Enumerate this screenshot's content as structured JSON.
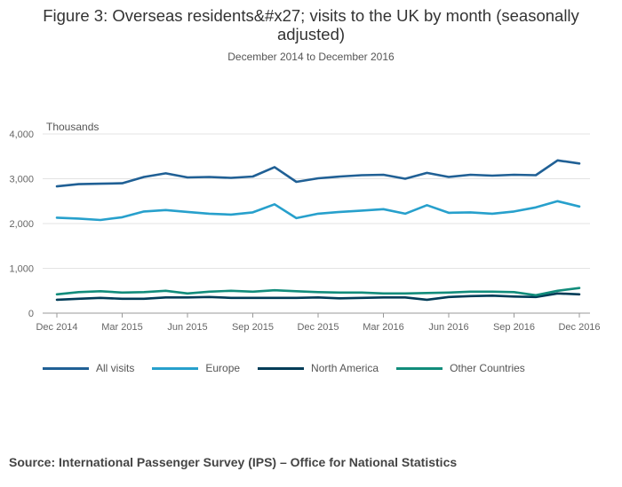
{
  "header": {
    "title": "Figure 3: Overseas residents&#x27; visits to the UK by month (seasonally adjusted)",
    "subtitle": "December 2014 to December 2016"
  },
  "footer": {
    "source": "Source: International Passenger Survey (IPS) – Office for National Statistics"
  },
  "chart_data": {
    "type": "line",
    "title": "Figure 3: Overseas residents&#x27; visits to the UK by month (seasonally adjusted)",
    "subtitle": "December 2014 to December 2016",
    "ylabel": "Thousands",
    "xlabel": "",
    "ylim": [
      0,
      4000
    ],
    "yticks": [
      0,
      1000,
      2000,
      3000,
      4000
    ],
    "ytick_labels": [
      "0",
      "1,000",
      "2,000",
      "3,000",
      "4,000"
    ],
    "x": [
      "Dec 2014",
      "Jan 2015",
      "Feb 2015",
      "Mar 2015",
      "Apr 2015",
      "May 2015",
      "Jun 2015",
      "Jul 2015",
      "Aug 2015",
      "Sep 2015",
      "Oct 2015",
      "Nov 2015",
      "Dec 2015",
      "Jan 2016",
      "Feb 2016",
      "Mar 2016",
      "Apr 2016",
      "May 2016",
      "Jun 2016",
      "Jul 2016",
      "Aug 2016",
      "Sep 2016",
      "Oct 2016",
      "Nov 2016",
      "Dec 2016"
    ],
    "xtick_indices": [
      0,
      3,
      6,
      9,
      12,
      15,
      18,
      21,
      24
    ],
    "xtick_labels": [
      "Dec 2014",
      "Mar 2015",
      "Jun 2015",
      "Sep 2015",
      "Dec 2015",
      "Mar 2016",
      "Jun 2016",
      "Sep 2016",
      "Dec 2016"
    ],
    "grid": true,
    "legend_position": "bottom",
    "series": [
      {
        "name": "All visits",
        "color": "#206095",
        "values": [
          2830,
          2880,
          2890,
          2900,
          3040,
          3120,
          3030,
          3040,
          3020,
          3050,
          3260,
          2930,
          3010,
          3050,
          3080,
          3090,
          3000,
          3130,
          3040,
          3090,
          3070,
          3090,
          3080,
          3410,
          3340
        ]
      },
      {
        "name": "Europe",
        "color": "#27a0cc",
        "values": [
          2130,
          2110,
          2080,
          2140,
          2270,
          2300,
          2260,
          2220,
          2200,
          2250,
          2430,
          2120,
          2220,
          2260,
          2290,
          2320,
          2220,
          2410,
          2240,
          2250,
          2220,
          2270,
          2360,
          2500,
          2380
        ]
      },
      {
        "name": "North America",
        "color": "#003c57",
        "values": [
          300,
          320,
          340,
          320,
          320,
          350,
          350,
          360,
          340,
          340,
          340,
          340,
          350,
          330,
          340,
          350,
          350,
          300,
          360,
          380,
          390,
          370,
          360,
          440,
          420
        ]
      },
      {
        "name": "Other Countries",
        "color": "#118c7b",
        "values": [
          420,
          470,
          490,
          460,
          470,
          500,
          440,
          480,
          500,
          480,
          510,
          490,
          470,
          460,
          460,
          440,
          440,
          450,
          460,
          480,
          480,
          470,
          400,
          500,
          560
        ]
      }
    ]
  }
}
